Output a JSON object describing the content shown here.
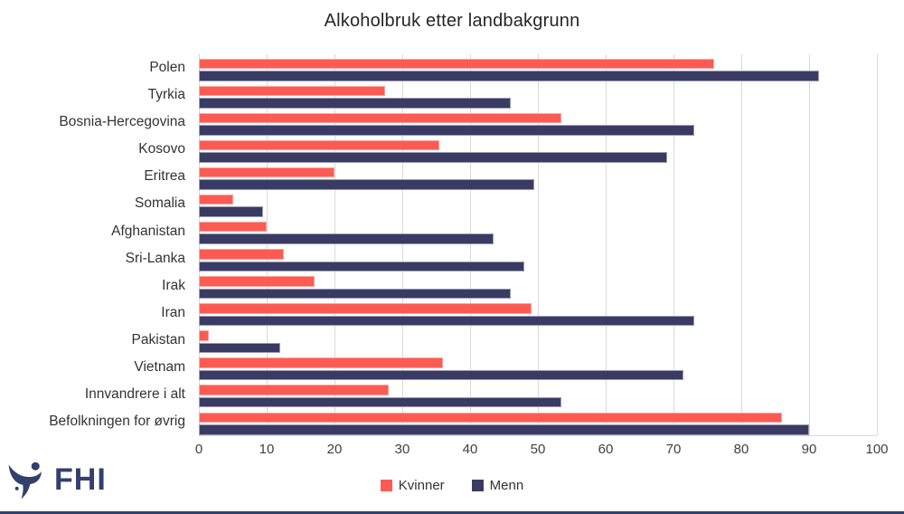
{
  "chart_data": {
    "type": "bar",
    "orientation": "horizontal",
    "title": "Alkoholbruk etter landbakgrunn",
    "categories": [
      "Polen",
      "Tyrkia",
      "Bosnia-Hercegovina",
      "Kosovo",
      "Eritrea",
      "Somalia",
      "Afghanistan",
      "Sri-Lanka",
      "Irak",
      "Iran",
      "Pakistan",
      "Vietnam",
      "Innvandrere i alt",
      "Befolkningen for øvrig"
    ],
    "series": [
      {
        "name": "Kvinner",
        "color": "#FC5B53",
        "edge_color": "#FDA49E",
        "values": [
          76,
          27.5,
          53.5,
          35.5,
          20,
          5,
          10,
          12.5,
          17,
          49,
          1.5,
          36,
          28,
          86
        ]
      },
      {
        "name": "Menn",
        "color": "#3A3B63",
        "edge_color": "#9B9BB4",
        "values": [
          91.5,
          46,
          73,
          69,
          49.5,
          9.5,
          43.5,
          48,
          46,
          73,
          12,
          71.5,
          53.5,
          90
        ]
      }
    ],
    "xlabel": "",
    "ylabel": "",
    "xlim": [
      0,
      100
    ],
    "xticks": [
      0,
      10,
      20,
      30,
      40,
      50,
      60,
      70,
      80,
      90,
      100
    ],
    "grid": true,
    "grid_color": "#D9D9D9",
    "legend_position": "bottom"
  },
  "footer": {
    "logo_text": "FHI",
    "logo_color": "#32406E",
    "rule_color": "#32406E"
  },
  "text_colors": {
    "title": "#262626",
    "labels": "#333333",
    "ticks": "#404040"
  }
}
